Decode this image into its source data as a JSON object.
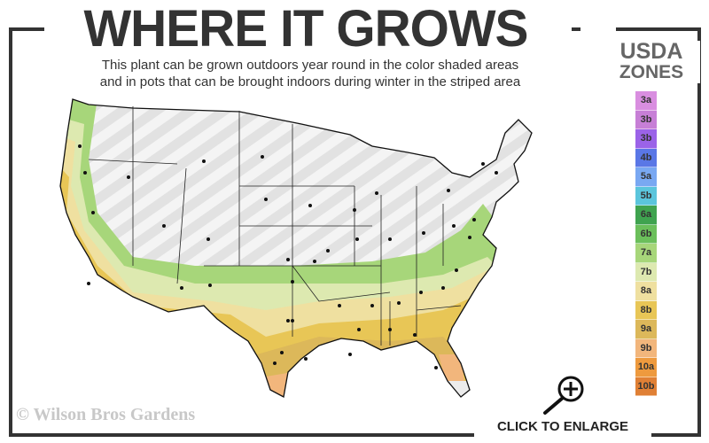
{
  "title": "WHERE IT GROWS",
  "subtitle_line1": "This plant can be grown outdoors year round in the color shaded areas",
  "subtitle_line2": "and in pots that can be brought indoors during winter in the striped area",
  "legend": {
    "title_line1": "USDA",
    "title_line2": "ZONES",
    "zones": [
      {
        "label": "3a",
        "color": "#d98ee0"
      },
      {
        "label": "3b",
        "color": "#c77fd6"
      },
      {
        "label": "3b",
        "color": "#9b63e8"
      },
      {
        "label": "4b",
        "color": "#5a77e6"
      },
      {
        "label": "5a",
        "color": "#79a8f2"
      },
      {
        "label": "5b",
        "color": "#5bc5dc"
      },
      {
        "label": "6a",
        "color": "#3fa34f"
      },
      {
        "label": "6b",
        "color": "#6bbf5b"
      },
      {
        "label": "7a",
        "color": "#a7d67a"
      },
      {
        "label": "7b",
        "color": "#dde9b0"
      },
      {
        "label": "8a",
        "color": "#efe0a0"
      },
      {
        "label": "8b",
        "color": "#e8c656"
      },
      {
        "label": "9a",
        "color": "#dcb85a"
      },
      {
        "label": "9b",
        "color": "#f2b67c"
      },
      {
        "label": "10a",
        "color": "#ee9a3e"
      },
      {
        "label": "10b",
        "color": "#e08035"
      }
    ]
  },
  "copyright": "© Wilson Bros Gardens",
  "enlarge_label": "CLICK TO ENLARGE",
  "icons": {
    "enlarge": "magnifier-plus-icon"
  }
}
